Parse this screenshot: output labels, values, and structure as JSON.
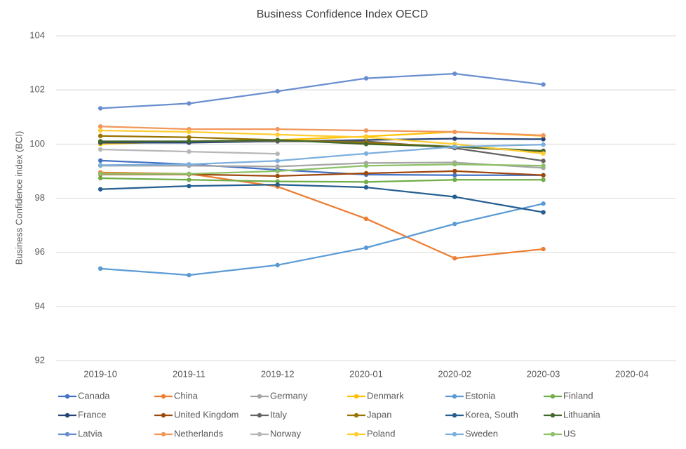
{
  "chart_data": {
    "type": "line",
    "title": "Business Confidence  Index OECD",
    "y_label": "Business Confidence index (BCI)",
    "categories": [
      "2019-10",
      "2019-11",
      "2019-12",
      "2020-01",
      "2020-02",
      "2020-03",
      "2020-04"
    ],
    "ylim": [
      92,
      104
    ],
    "yticks": [
      92,
      94,
      96,
      98,
      100,
      102,
      104
    ],
    "grid": true,
    "legend": "bottom",
    "series": [
      {
        "name": "Canada",
        "color": "#4472c4",
        "values": [
          99.39,
          99.25,
          99.05,
          98.87,
          98.85,
          98.85,
          null
        ]
      },
      {
        "name": "China",
        "color": "#ed7d31",
        "values": [
          98.95,
          98.9,
          98.43,
          97.24,
          95.78,
          96.12,
          null
        ]
      },
      {
        "name": "Germany",
        "color": "#a5a5a5",
        "values": [
          99.2,
          99.2,
          99.17,
          99.3,
          99.32,
          99.12,
          null
        ]
      },
      {
        "name": "Denmark",
        "color": "#ffc000",
        "values": [
          100.0,
          100.1,
          100.15,
          100.28,
          100.45,
          100.3,
          null
        ]
      },
      {
        "name": "Estonia",
        "color": "#5b9bd5",
        "values": [
          95.4,
          95.16,
          95.53,
          96.17,
          97.05,
          97.8,
          null
        ]
      },
      {
        "name": "Finland",
        "color": "#70ad47",
        "values": [
          98.74,
          98.68,
          98.62,
          98.6,
          98.68,
          98.68,
          null
        ]
      },
      {
        "name": "France",
        "color": "#264478",
        "values": [
          100.05,
          100.05,
          100.1,
          100.15,
          100.2,
          100.18,
          null
        ]
      },
      {
        "name": "United Kingdom",
        "color": "#9e480e",
        "values": [
          98.88,
          98.88,
          98.82,
          98.92,
          99.0,
          98.85,
          null
        ]
      },
      {
        "name": "Italy",
        "color": "#636363",
        "values": [
          100.1,
          100.1,
          100.1,
          100.1,
          99.85,
          99.38,
          null
        ]
      },
      {
        "name": "Japan",
        "color": "#997300",
        "values": [
          100.3,
          100.25,
          100.15,
          100.05,
          99.9,
          99.72,
          null
        ]
      },
      {
        "name": "Korea, South",
        "color": "#255e91",
        "values": [
          98.33,
          98.45,
          98.5,
          98.4,
          98.05,
          97.48,
          null
        ]
      },
      {
        "name": "Lithuania",
        "color": "#43682b",
        "values": [
          100.1,
          100.1,
          100.15,
          100.0,
          99.9,
          99.75,
          null
        ]
      },
      {
        "name": "Latvia",
        "color": "#698ed0",
        "values": [
          101.32,
          101.5,
          101.95,
          102.43,
          102.6,
          102.2,
          null
        ]
      },
      {
        "name": "Netherlands",
        "color": "#f1975a",
        "values": [
          100.65,
          100.55,
          100.55,
          100.5,
          100.45,
          100.32,
          null
        ]
      },
      {
        "name": "Norway",
        "color": "#b7b7b7",
        "values": [
          99.8,
          99.72,
          99.64,
          null,
          null,
          null,
          null
        ]
      },
      {
        "name": "Poland",
        "color": "#ffcd33",
        "values": [
          100.5,
          100.45,
          100.35,
          100.25,
          100.0,
          99.65,
          null
        ]
      },
      {
        "name": "Sweden",
        "color": "#7cafdd",
        "values": [
          99.22,
          99.25,
          99.38,
          99.65,
          99.9,
          99.98,
          null
        ]
      },
      {
        "name": "US",
        "color": "#8cc168",
        "values": [
          98.9,
          98.9,
          99.0,
          99.2,
          99.25,
          99.2,
          null
        ]
      }
    ]
  }
}
